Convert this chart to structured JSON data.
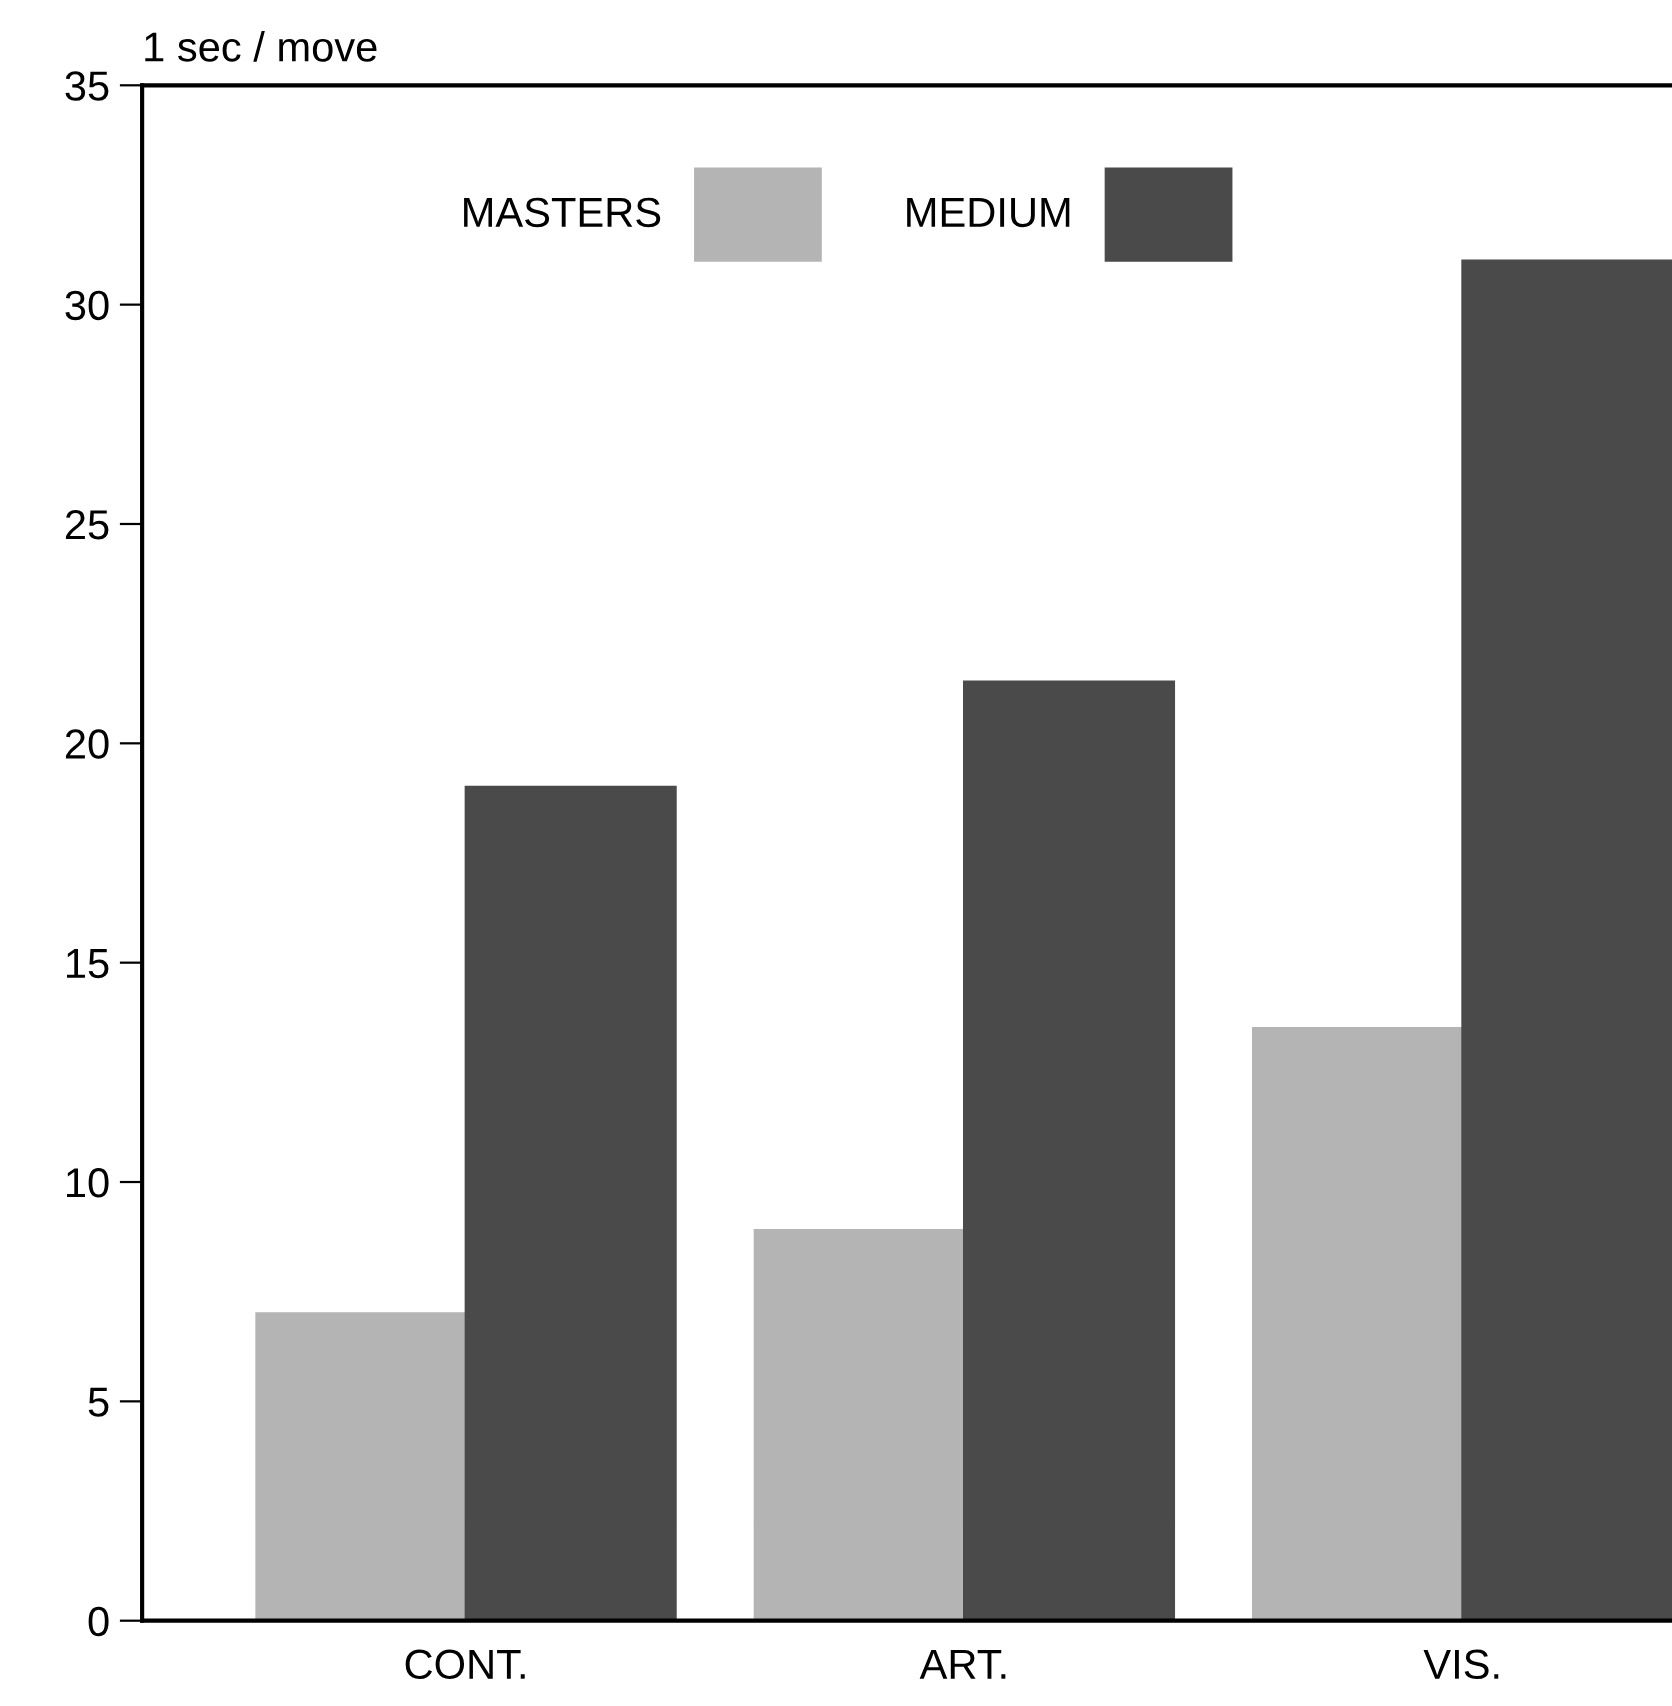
{
  "chart_data": {
    "type": "bar",
    "ylabel": "1 sec / move",
    "categories": [
      "CONT.",
      "ART.",
      "VIS."
    ],
    "series": [
      {
        "name": "MASTERS",
        "color": "#b4b4b4",
        "values": [
          7.0,
          8.9,
          13.5
        ]
      },
      {
        "name": "MEDIUM",
        "color": "#4a4a4a",
        "values": [
          19.0,
          21.4,
          31.0
        ]
      }
    ],
    "ylim": [
      0,
      35
    ],
    "yticks": [
      0,
      5,
      10,
      15,
      20,
      25,
      30,
      35
    ],
    "grid": false,
    "legend": "top"
  }
}
